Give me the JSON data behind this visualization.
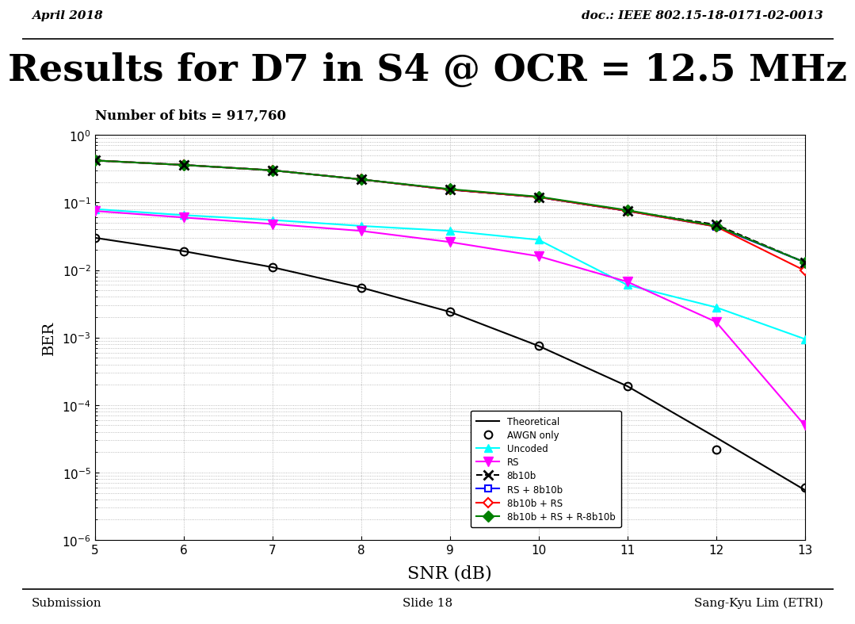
{
  "title": "Results for D7 in S4 @ OCR = 12.5 MHz",
  "header_left": "April 2018",
  "header_right": "doc.: IEEE 802.15-18-0171-02-0013",
  "footer_left": "Submission",
  "footer_center": "Slide 18",
  "footer_right": "Sang-Kyu Lim (ETRI)",
  "subtitle": "Number of bits = 917,760",
  "xlabel": "SNR (dB)",
  "ylabel": "BER",
  "snr": [
    5,
    6,
    7,
    8,
    9,
    10,
    11,
    12,
    13
  ],
  "theoretical": [
    0.03,
    0.019,
    0.011,
    0.0055,
    0.0024,
    0.00075,
    0.00019,
    3.3e-05,
    5.5e-06
  ],
  "awgn_only": [
    0.03,
    0.019,
    0.011,
    0.0055,
    0.0024,
    0.00075,
    0.00019,
    2.2e-05,
    6e-06
  ],
  "uncoded": [
    0.08,
    0.065,
    0.055,
    0.045,
    0.038,
    0.028,
    0.006,
    0.0028,
    0.00095
  ],
  "rs": [
    0.075,
    0.06,
    0.048,
    0.038,
    0.026,
    0.016,
    0.0067,
    0.0017,
    5e-05
  ],
  "b8b10b": [
    0.42,
    0.36,
    0.3,
    0.22,
    0.155,
    0.12,
    0.075,
    0.047,
    0.013
  ],
  "rs_8b10b": [
    0.42,
    0.36,
    0.3,
    0.22,
    0.155,
    0.12,
    0.075,
    0.044,
    0.013
  ],
  "b8b10b_rs": [
    0.42,
    0.36,
    0.3,
    0.22,
    0.155,
    0.12,
    0.075,
    0.044,
    0.0098
  ],
  "b8b10b_rs_r8b10b": [
    0.42,
    0.36,
    0.3,
    0.22,
    0.158,
    0.122,
    0.077,
    0.045,
    0.013
  ]
}
